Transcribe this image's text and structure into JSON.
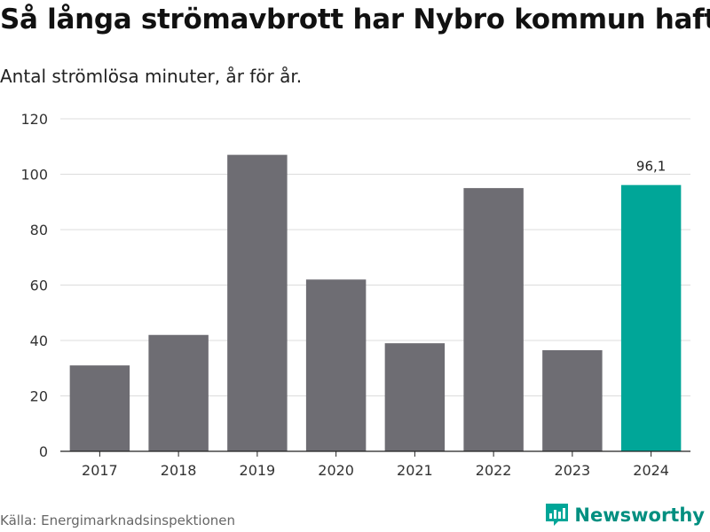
{
  "title": "Så långa strömavbrott har Nybro kommun haft",
  "subtitle": "Antal strömlösa minuter, år för år.",
  "source": "Källa: Energimarknadsinspektionen",
  "brand": {
    "name": "Newsworthy",
    "icon": "bar-chart-logo-icon"
  },
  "colors": {
    "bar": "#6e6d73",
    "highlight": "#00a698",
    "grid": "#dcdcdc",
    "axis": "#222222",
    "brand": "#008f80"
  },
  "chart_data": {
    "type": "bar",
    "title": "Så långa strömavbrott har Nybro kommun haft",
    "subtitle": "Antal strömlösa minuter, år för år.",
    "xlabel": "",
    "ylabel": "",
    "categories": [
      "2017",
      "2018",
      "2019",
      "2020",
      "2021",
      "2022",
      "2023",
      "2024"
    ],
    "values": [
      31,
      42,
      107,
      62,
      39,
      95,
      36.5,
      96.1
    ],
    "highlight_index": 7,
    "data_labels": [
      {
        "index": 7,
        "text": "96,1"
      }
    ],
    "ylim": [
      0,
      120
    ],
    "yticks": [
      0,
      20,
      40,
      60,
      80,
      100,
      120
    ],
    "ytick_labels": [
      "0",
      "20",
      "40",
      "60",
      "80",
      "100",
      "120"
    ],
    "grid": true,
    "legend": "none"
  }
}
